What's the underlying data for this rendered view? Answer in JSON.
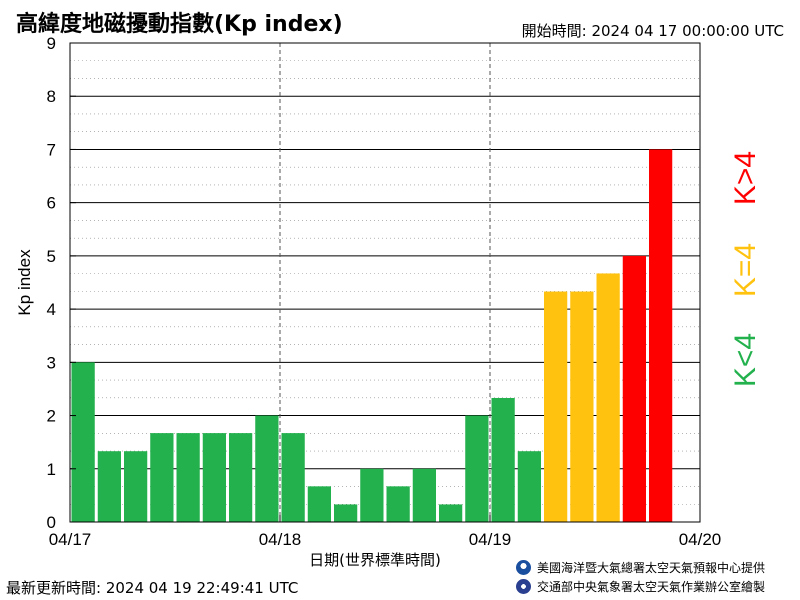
{
  "header": {
    "title": "高緯度地磁擾動指數(Kp index)",
    "start_time": "開始時間:  2024 04 17 00:00:00 UTC"
  },
  "footer": {
    "updated": "最新更新時間: 2024 04 19 22:49:41 UTC",
    "credit_noaa": "美國海洋暨大氣總署太空天氣預報中心提供",
    "credit_cwa": "交通部中央氣象署太空天氣作業辦公室繪製"
  },
  "colors": {
    "low": "#22b14c",
    "mid": "#ffc20e",
    "high": "#ff0000"
  },
  "chart_data": {
    "type": "bar",
    "xlabel": "日期(世界標準時間)",
    "ylabel": "Kp index",
    "ylim": [
      0,
      9
    ],
    "yticks": [
      0,
      1,
      2,
      3,
      4,
      5,
      6,
      7,
      8,
      9
    ],
    "xticks": [
      "04/17",
      "04/18",
      "04/19",
      "04/20"
    ],
    "bar_interval_hours": 3,
    "grid": true,
    "values": [
      3.0,
      1.33,
      1.33,
      1.67,
      1.67,
      1.67,
      1.67,
      2.0,
      1.67,
      0.67,
      0.33,
      1.0,
      0.67,
      1.0,
      0.33,
      2.0,
      2.33,
      1.33,
      4.33,
      4.33,
      4.67,
      5.0,
      7.0
    ],
    "legend": [
      "K<4",
      "K=4",
      "K>4"
    ],
    "legend_position": "right"
  }
}
